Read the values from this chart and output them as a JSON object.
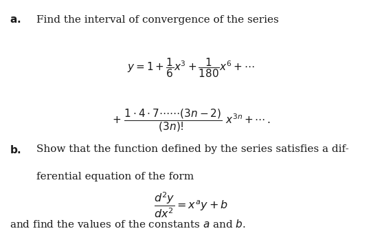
{
  "background_color": "#ffffff",
  "figsize": [
    5.56,
    3.36
  ],
  "dpi": 100,
  "text_color": "#1a1a1a",
  "part_a_text": "Find the interval of convergence of the series",
  "part_b_text_line1": "Show that the function defined by the series satisfies a dif-",
  "part_b_text_line2": "ferential equation of the form",
  "part_b_footer": "and find the values of the constants $a$ and $b$.",
  "font_size_main": 11.0
}
